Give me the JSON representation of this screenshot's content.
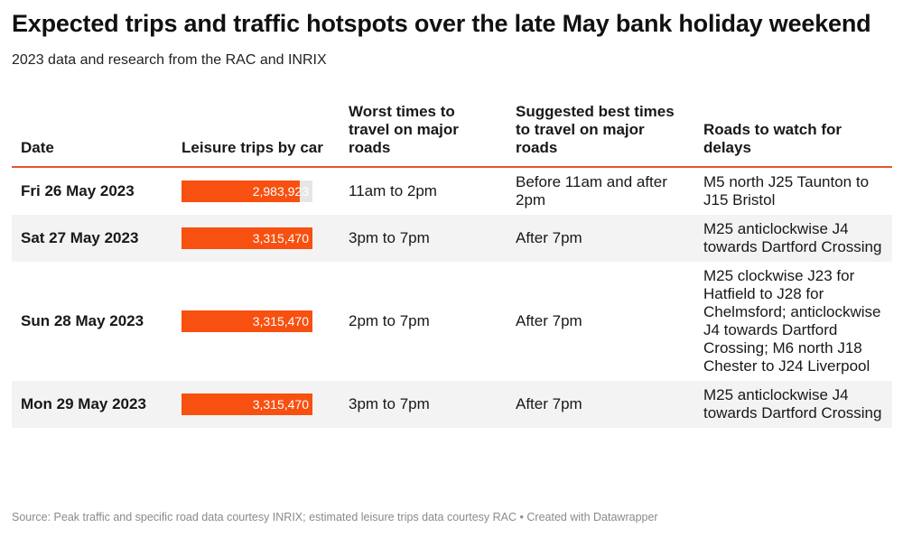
{
  "title": "Expected trips and traffic hotspots over the late May bank holiday weekend",
  "subtitle": "2023 data and research from the RAC and INRIX",
  "source": "Source: Peak traffic and specific road data courtesy INRIX; estimated leisure trips data courtesy RAC • Created with Datawrapper",
  "colors": {
    "bar": "#f75010",
    "bar_track": "#e6e6e6",
    "header_rule": "#e8572a",
    "stripe": "#f3f3f3"
  },
  "chart_data": {
    "type": "table",
    "columns": [
      "Date",
      "Leisure trips by car",
      "Worst times to travel on major roads",
      "Suggested best times to travel on major roads",
      "Roads to watch for delays"
    ],
    "bar_max": 3315470,
    "rows": [
      {
        "date": "Fri 26 May 2023",
        "trips": 2983923,
        "trips_label": "2,983,923",
        "worst": "11am to 2pm",
        "best": "Before 11am and after 2pm",
        "roads": "M5 north J25 Taunton to J15 Bristol"
      },
      {
        "date": "Sat 27 May 2023",
        "trips": 3315470,
        "trips_label": "3,315,470",
        "worst": "3pm to 7pm",
        "best": "After 7pm",
        "roads": "M25 anticlockwise J4 towards Dartford Crossing"
      },
      {
        "date": "Sun 28 May 2023",
        "trips": 3315470,
        "trips_label": "3,315,470",
        "worst": "2pm to 7pm",
        "best": "After 7pm",
        "roads": "M25 clockwise J23 for Hatfield to J28 for Chelmsford; anticlockwise J4 towards Dartford Crossing; M6 north J18 Chester to J24 Liverpool"
      },
      {
        "date": "Mon 29 May 2023",
        "trips": 3315470,
        "trips_label": "3,315,470",
        "worst": "3pm to 7pm",
        "best": "After 7pm",
        "roads": "M25 anticlockwise J4 towards Dartford Crossing"
      }
    ]
  }
}
